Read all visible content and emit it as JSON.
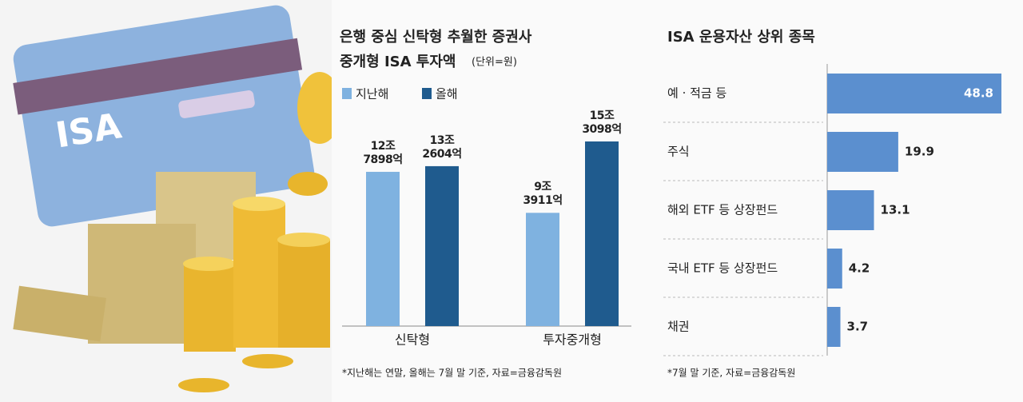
{
  "illustration": {
    "card_text": "ISA"
  },
  "chart_data": [
    {
      "type": "grouped-bar",
      "title": "은행 중심 신탁형 추월한 증권사",
      "subtitle": "중개형 ISA 투자액",
      "unit": "(단위=원)",
      "categories": [
        "신탁형",
        "투자중개형"
      ],
      "series": [
        {
          "name": "지난해",
          "color": "#7fb2e0",
          "values": [
            127898,
            93911
          ],
          "value_labels": [
            "12조 7898억",
            "9조 3911억"
          ]
        },
        {
          "name": "올해",
          "color": "#1f5b8e",
          "values": [
            132604,
            153098
          ],
          "value_labels": [
            "13조 2604억",
            "15조 3098억"
          ]
        }
      ],
      "note": "*지난해는 연말, 올해는 7월 말 기준, 자료=금융감독원"
    },
    {
      "type": "hbar",
      "title": "ISA 운용자산 상위 종목",
      "color": "#5b8fcf",
      "categories": [
        "예 · 적금 등",
        "주식",
        "해외 ETF 등 상장펀드",
        "국내 ETF 등 상장펀드",
        "채권"
      ],
      "values": [
        48.8,
        19.9,
        13.1,
        4.2,
        3.7
      ],
      "note": "*7월 말 기준, 자료=금융감독원"
    }
  ]
}
